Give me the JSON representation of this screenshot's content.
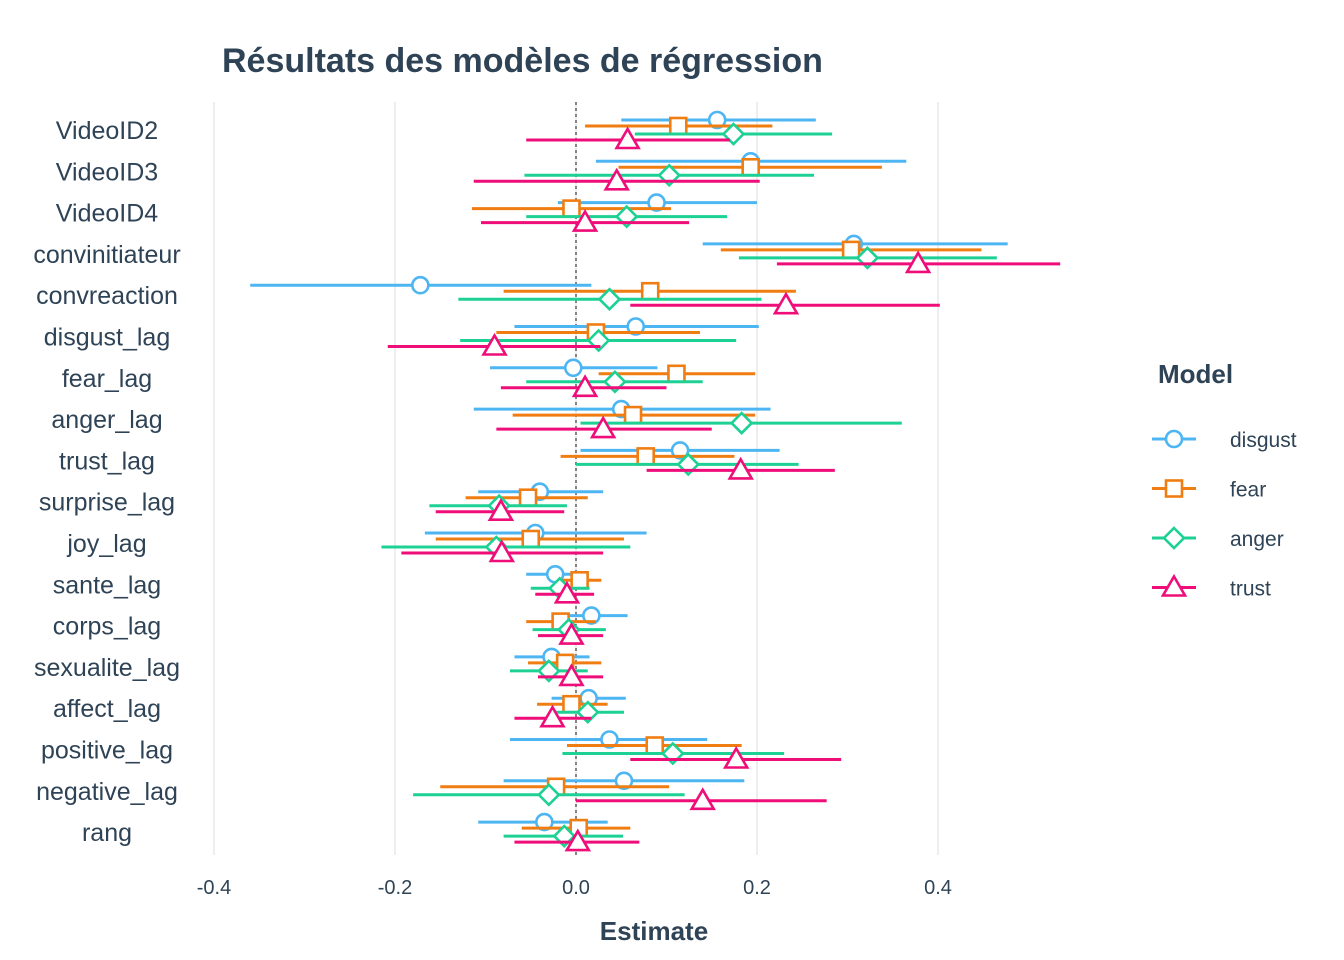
{
  "chart_data": {
    "type": "scatter",
    "subtype": "coefficient-plot",
    "title": "Résultats des modèles de régression",
    "xlabel": "Estimate",
    "ylabel": "",
    "xlim": [
      -0.4,
      0.54
    ],
    "xticks": [
      -0.4,
      -0.2,
      0.0,
      0.2,
      0.4
    ],
    "xtick_labels": [
      "-0.4",
      "-0.2",
      "0.0",
      "0.2",
      "0.4"
    ],
    "grid": "vertical",
    "reference_line": 0,
    "legend": {
      "title": "Model",
      "position": "right"
    },
    "categories": [
      "VideoID2",
      "VideoID3",
      "VideoID4",
      "convinitiateur",
      "convreaction",
      "disgust_lag",
      "fear_lag",
      "anger_lag",
      "trust_lag",
      "surprise_lag",
      "joy_lag",
      "sante_lag",
      "corps_lag",
      "sexualite_lag",
      "affect_lag",
      "positive_lag",
      "negative_lag",
      "rang"
    ],
    "series": [
      {
        "name": "disgust",
        "color": "#4db6f2",
        "marker": "circle",
        "estimate": [
          0.156,
          0.193,
          0.089,
          0.307,
          -0.172,
          0.066,
          -0.003,
          0.05,
          0.115,
          -0.04,
          -0.045,
          -0.023,
          0.017,
          -0.027,
          0.014,
          0.037,
          0.053,
          -0.035
        ],
        "low": [
          0.05,
          0.022,
          -0.02,
          0.14,
          -0.36,
          -0.068,
          -0.095,
          -0.113,
          0.005,
          -0.108,
          -0.167,
          -0.055,
          -0.025,
          -0.068,
          -0.027,
          -0.073,
          -0.08,
          -0.108
        ],
        "high": [
          0.265,
          0.365,
          0.2,
          0.477,
          0.017,
          0.202,
          0.09,
          0.215,
          0.225,
          0.03,
          0.078,
          0.01,
          0.057,
          0.015,
          0.055,
          0.145,
          0.186,
          0.035
        ]
      },
      {
        "name": "fear",
        "color": "#f07d12",
        "marker": "square",
        "estimate": [
          0.113,
          0.193,
          -0.005,
          0.304,
          0.082,
          0.022,
          0.111,
          0.063,
          0.077,
          -0.053,
          -0.05,
          0.004,
          -0.017,
          -0.012,
          -0.005,
          0.087,
          -0.022,
          0.003
        ],
        "low": [
          0.01,
          0.047,
          -0.115,
          0.16,
          -0.08,
          -0.088,
          0.025,
          -0.07,
          -0.017,
          -0.122,
          -0.155,
          -0.02,
          -0.055,
          -0.053,
          -0.043,
          -0.01,
          -0.15,
          -0.06
        ],
        "high": [
          0.217,
          0.338,
          0.105,
          0.448,
          0.243,
          0.137,
          0.198,
          0.198,
          0.175,
          0.013,
          0.053,
          0.028,
          0.022,
          0.028,
          0.035,
          0.183,
          0.103,
          0.06
        ]
      },
      {
        "name": "anger",
        "color": "#1dd195",
        "marker": "diamond",
        "estimate": [
          0.174,
          0.103,
          0.056,
          0.322,
          0.037,
          0.025,
          0.043,
          0.183,
          0.124,
          -0.085,
          -0.088,
          -0.018,
          -0.008,
          -0.03,
          0.013,
          0.107,
          -0.03,
          -0.013
        ],
        "low": [
          0.065,
          -0.057,
          -0.055,
          0.18,
          -0.13,
          -0.128,
          -0.055,
          0.005,
          0.0,
          -0.162,
          -0.215,
          -0.05,
          -0.048,
          -0.073,
          -0.027,
          -0.015,
          -0.18,
          -0.08
        ],
        "high": [
          0.283,
          0.263,
          0.167,
          0.465,
          0.205,
          0.177,
          0.14,
          0.36,
          0.246,
          -0.01,
          0.06,
          0.015,
          0.033,
          0.013,
          0.053,
          0.23,
          0.12,
          0.052
        ]
      },
      {
        "name": "trust",
        "color": "#ef0d7a",
        "marker": "triangle",
        "estimate": [
          0.057,
          0.045,
          0.01,
          0.378,
          0.232,
          -0.09,
          0.01,
          0.03,
          0.182,
          -0.083,
          -0.082,
          -0.01,
          -0.005,
          -0.005,
          -0.026,
          0.177,
          0.14,
          0.002
        ],
        "low": [
          -0.055,
          -0.113,
          -0.105,
          0.222,
          0.06,
          -0.208,
          -0.083,
          -0.088,
          0.078,
          -0.155,
          -0.193,
          -0.045,
          -0.042,
          -0.042,
          -0.068,
          0.06,
          0.0,
          -0.068
        ],
        "high": [
          0.17,
          0.203,
          0.125,
          0.535,
          0.402,
          0.027,
          0.1,
          0.15,
          0.286,
          -0.013,
          0.03,
          0.02,
          0.03,
          0.03,
          0.017,
          0.293,
          0.277,
          0.07
        ]
      }
    ]
  }
}
